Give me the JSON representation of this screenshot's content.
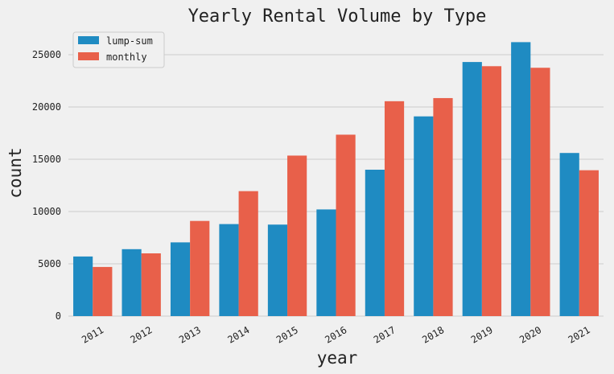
{
  "chart_data": {
    "type": "bar",
    "title": "Yearly Rental Volume by Type",
    "xlabel": "year",
    "ylabel": "count",
    "categories": [
      "2011",
      "2012",
      "2013",
      "2014",
      "2015",
      "2016",
      "2017",
      "2018",
      "2019",
      "2020",
      "2021"
    ],
    "series": [
      {
        "name": "lump-sum",
        "color": "#1f8bc2",
        "values": [
          5700,
          6400,
          7050,
          8800,
          8750,
          10200,
          14000,
          19100,
          24300,
          26200,
          15600
        ]
      },
      {
        "name": "monthly",
        "color": "#e8604a",
        "values": [
          4700,
          6000,
          9100,
          11950,
          15350,
          17350,
          20550,
          20850,
          23900,
          23750,
          13950
        ]
      }
    ],
    "ylim": [
      0,
      27000
    ],
    "yticks": [
      0,
      5000,
      10000,
      15000,
      20000,
      25000
    ],
    "grid": true,
    "legend_position": "top-left"
  }
}
